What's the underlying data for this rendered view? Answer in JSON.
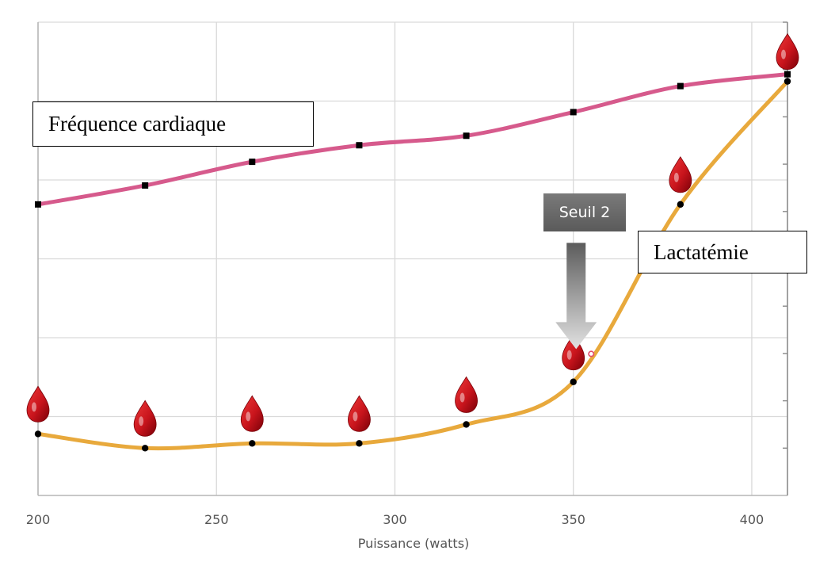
{
  "chart_data": {
    "type": "line",
    "xlabel": "Puissance (watts)",
    "xlim": [
      200,
      410
    ],
    "ylim": [
      0,
      100
    ],
    "x_ticks": [
      "200",
      "250",
      "300",
      "350",
      "400"
    ],
    "grid": true,
    "series": [
      {
        "name": "Fréquence cardiaque",
        "color": "#d65a8c",
        "marker": "square",
        "x": [
          200,
          230,
          260,
          290,
          320,
          350,
          380,
          410
        ],
        "y": [
          61.5,
          65.5,
          70.5,
          74.0,
          76.0,
          81.0,
          86.5,
          89.0
        ]
      },
      {
        "name": "Lactatémie",
        "color": "#e8a93c",
        "marker": "circle",
        "x": [
          200,
          230,
          260,
          290,
          320,
          350,
          380,
          410
        ],
        "y": [
          13.0,
          10.0,
          11.0,
          11.0,
          15.0,
          24.0,
          61.5,
          87.5
        ]
      }
    ],
    "annotations": {
      "threshold_label": "Seuil 2",
      "threshold_x": 355,
      "drop_icon": "blood-drop-icon",
      "drop_color": "#c8141c"
    }
  }
}
